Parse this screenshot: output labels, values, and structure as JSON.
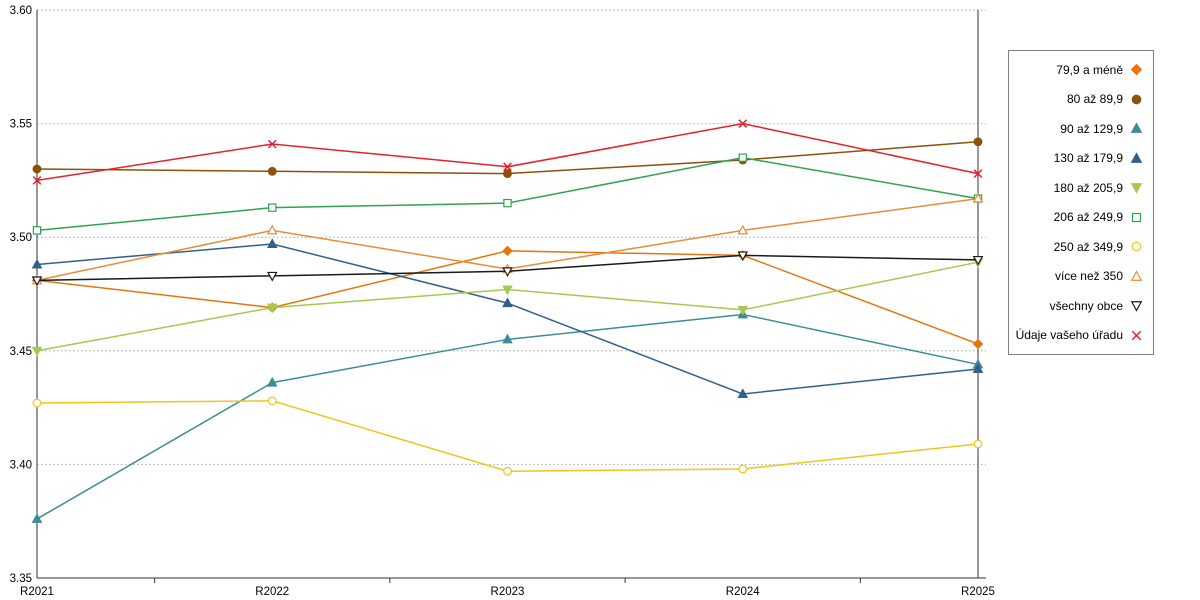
{
  "chart_data": {
    "type": "line",
    "categories": [
      "R2021",
      "R2022",
      "R2023",
      "R2024",
      "R2025"
    ],
    "ylim": [
      3.35,
      3.6
    ],
    "yticks": [
      3.35,
      3.4,
      3.45,
      3.5,
      3.55,
      3.6
    ],
    "grid": "horizontal-dotted",
    "legend_position": "right",
    "title": "",
    "xlabel": "",
    "ylabel": "",
    "series": [
      {
        "name": "79,9 a méně",
        "marker": "diamond",
        "filled": true,
        "color": "#E8740C",
        "values": [
          3.481,
          3.469,
          3.494,
          3.492,
          3.453
        ]
      },
      {
        "name": "80 až 89,9",
        "marker": "circle",
        "filled": true,
        "color": "#8C510A",
        "values": [
          3.53,
          3.529,
          3.528,
          3.534,
          3.542
        ]
      },
      {
        "name": "90 až 129,9",
        "marker": "triangle-up",
        "filled": true,
        "color": "#3C8C96",
        "values": [
          3.376,
          3.436,
          3.455,
          3.466,
          3.444
        ]
      },
      {
        "name": "130 až 179,9",
        "marker": "triangle-up",
        "filled": true,
        "color": "#30618C",
        "values": [
          3.488,
          3.497,
          3.471,
          3.431,
          3.442
        ]
      },
      {
        "name": "180 až 205,9",
        "marker": "triangle-down",
        "filled": true,
        "color": "#A5C850",
        "values": [
          3.45,
          3.469,
          3.477,
          3.468,
          3.489
        ]
      },
      {
        "name": "206 až 249,9",
        "marker": "square",
        "filled": false,
        "color": "#2EA450",
        "values": [
          3.503,
          3.513,
          3.515,
          3.535,
          3.517
        ]
      },
      {
        "name": "250 až 349,9",
        "marker": "circle",
        "filled": false,
        "color": "#F2C41D",
        "values": [
          3.427,
          3.428,
          3.397,
          3.398,
          3.409
        ]
      },
      {
        "name": "více než 350",
        "marker": "triangle-up",
        "filled": false,
        "color": "#E98B38",
        "values": [
          3.481,
          3.503,
          3.486,
          3.503,
          3.517
        ]
      },
      {
        "name": "všechny obce",
        "marker": "triangle-down",
        "filled": false,
        "color": "#1A1A1A",
        "values": [
          3.481,
          3.483,
          3.485,
          3.492,
          3.49
        ]
      },
      {
        "name": "Údaje vašeho úřadu",
        "marker": "x",
        "filled": false,
        "color": "#E62129",
        "values": [
          3.525,
          3.541,
          3.531,
          3.55,
          3.528
        ]
      }
    ]
  }
}
